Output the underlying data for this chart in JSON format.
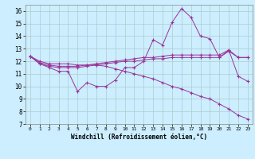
{
  "xlabel": "Windchill (Refroidissement éolien,°C)",
  "ylabel": "",
  "bg_color": "#cceeff",
  "grid_color": "#aacccc",
  "line_color": "#993399",
  "xlim": [
    -0.5,
    23.5
  ],
  "ylim": [
    7,
    16.5
  ],
  "xticks": [
    0,
    1,
    2,
    3,
    4,
    5,
    6,
    7,
    8,
    9,
    10,
    11,
    12,
    13,
    14,
    15,
    16,
    17,
    18,
    19,
    20,
    21,
    22,
    23
  ],
  "yticks": [
    7,
    8,
    9,
    10,
    11,
    12,
    13,
    14,
    15,
    16
  ],
  "series1": [
    12.4,
    11.8,
    11.5,
    11.2,
    11.2,
    9.6,
    10.3,
    10.0,
    10.0,
    10.5,
    11.5,
    11.5,
    12.0,
    13.7,
    13.3,
    15.1,
    16.2,
    15.5,
    14.0,
    13.8,
    12.3,
    12.9,
    10.8,
    10.4
  ],
  "series2": [
    12.4,
    11.8,
    11.6,
    11.5,
    11.5,
    11.5,
    11.6,
    11.7,
    11.8,
    11.9,
    12.0,
    12.0,
    12.1,
    12.2,
    12.2,
    12.3,
    12.3,
    12.3,
    12.3,
    12.3,
    12.3,
    12.8,
    12.3,
    12.3
  ],
  "series3": [
    12.4,
    11.9,
    11.7,
    11.6,
    11.6,
    11.6,
    11.7,
    11.8,
    11.9,
    12.0,
    12.1,
    12.2,
    12.3,
    12.3,
    12.4,
    12.5,
    12.5,
    12.5,
    12.5,
    12.5,
    12.5,
    12.9,
    12.3,
    12.3
  ],
  "series4": [
    12.4,
    12.0,
    11.8,
    11.8,
    11.8,
    11.7,
    11.7,
    11.7,
    11.6,
    11.4,
    11.2,
    11.0,
    10.8,
    10.6,
    10.3,
    10.0,
    9.8,
    9.5,
    9.2,
    9.0,
    8.6,
    8.2,
    7.7,
    7.4
  ]
}
